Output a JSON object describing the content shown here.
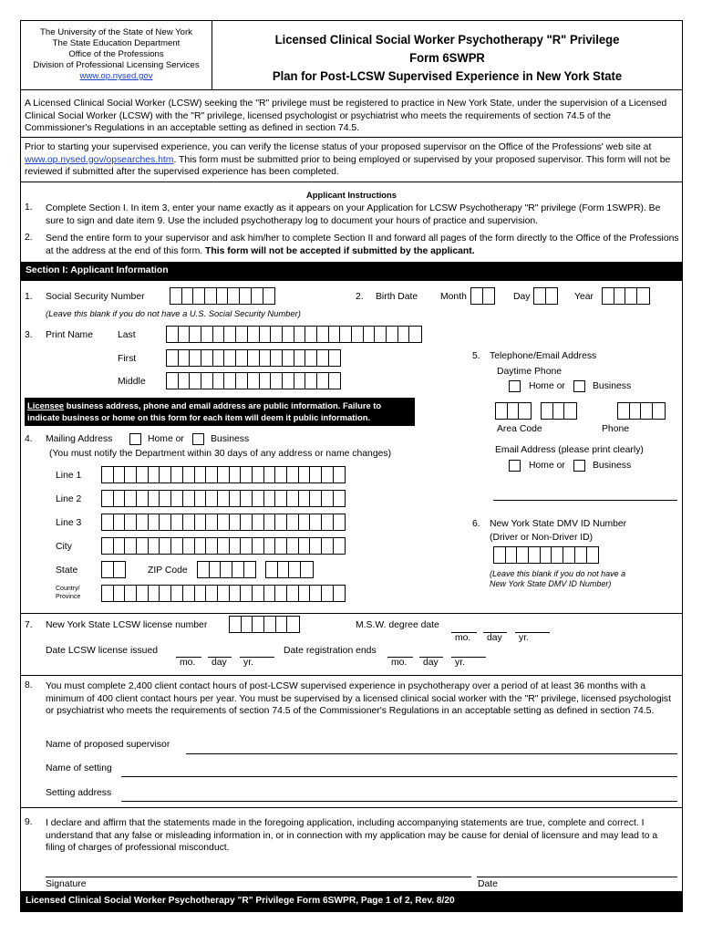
{
  "header": {
    "agency": [
      "The University of the State of New York",
      "The State Education Department",
      "Office of the Professions",
      "Division of Professional Licensing Services"
    ],
    "agency_url": "www.op.nysed.gov",
    "title": [
      "Licensed Clinical Social Worker Psychotherapy \"R\" Privilege",
      "Form 6SWPR",
      "Plan for Post-LCSW Supervised Experience in New York State"
    ]
  },
  "intro": {
    "p1": "A Licensed Clinical Social Worker (LCSW) seeking the \"R\" privilege must be registered to practice in New York State, under the supervision of a Licensed Clinical Social Worker (LCSW) with the \"R\" privilege, licensed psychologist or psychiatrist who meets the requirements of section 74.5 of the Commissioner's Regulations in an acceptable setting as defined in section 74.5.",
    "p2_a": "Prior to starting your supervised experience, you can verify the license status of your proposed supervisor on the Office of the Professions' web site at ",
    "p2_link": "www.op.nysed.gov/opsearches.htm",
    "p2_b": ". This form must be submitted prior to being employed or supervised by your proposed supervisor. This form will not be reviewed if submitted after the supervised experience has been completed."
  },
  "instructions": {
    "heading": "Applicant Instructions",
    "items": [
      {
        "num": "1.",
        "text": "Complete Section I. In item 3, enter your name exactly as it appears on your Application for LCSW Psychotherapy \"R\" privilege (Form 1SWPR). Be sure to sign and date item 9. Use the included psychotherapy log to document your hours of practice and supervision."
      },
      {
        "num": "2.",
        "text": "Send the entire form to your supervisor and ask him/her to complete Section II and forward all pages of the form directly to the Office of the Professions at the address at the end of this form. ",
        "bold": "This form will not be accepted if submitted by the applicant."
      }
    ]
  },
  "section1": {
    "title": "Section I: Applicant Information",
    "ssn": {
      "num": "1.",
      "label": "Social Security Number",
      "note": "(Leave this blank if you do not have a U.S. Social Security Number)"
    },
    "birth": {
      "num": "2.",
      "label": "Birth Date",
      "month": "Month",
      "day": "Day",
      "year": "Year"
    },
    "name": {
      "num": "3.",
      "label": "Print Name",
      "last": "Last",
      "first": "First",
      "middle": "Middle"
    },
    "notice": {
      "underlined": "Licensee",
      "text": " business address, phone and email address are public information. Failure to indicate business or home on this form for each item will deem it public information."
    },
    "mailing": {
      "num": "4.",
      "label": "Mailing Address",
      "home": "Home or",
      "business": "Business",
      "note": "(You must notify the Department within 30 days of any address or name changes)",
      "line1": "Line 1",
      "line2": "Line 2",
      "line3": "Line 3",
      "city": "City",
      "state": "State",
      "zip": "ZIP Code",
      "country": "Country/",
      "province": "Province"
    },
    "phone": {
      "num": "5.",
      "label": "Telephone/Email Address",
      "daytime": "Daytime Phone",
      "home": "Home or",
      "business": "Business",
      "area_code": "Area Code",
      "phone": "Phone",
      "email": "Email Address (please print clearly)"
    },
    "dmv": {
      "num": "6.",
      "label": "New York State DMV ID Number",
      "sub": "(Driver or Non-Driver ID)",
      "note1": "(Leave this blank if you do not have a",
      "note2": "New York State DMV ID Number)"
    },
    "license": {
      "num": "7.",
      "label": "New York State LCSW license number",
      "msw": "M.S.W. degree date",
      "issued": "Date LCSW license issued",
      "reg_ends": "Date registration ends",
      "mo": "mo.",
      "day": "day",
      "yr": "yr."
    },
    "experience": {
      "num": "8.",
      "text": "You must complete 2,400 client contact hours of post-LCSW supervised experience in psychotherapy over a period of at least 36 months with a minimum of 400 client contact hours per year. You must be supervised by a licensed clinical social worker with the \"R\" privilege, licensed psychologist or psychiatrist who meets the requirements of section 74.5 of the Commissioner's Regulations in an acceptable setting as defined in section 74.5.",
      "supervisor": "Name of proposed supervisor",
      "setting": "Name of setting",
      "address": "Setting address"
    },
    "declaration": {
      "num": "9.",
      "text": "I declare and affirm that the statements made in the foregoing application, including accompanying statements are true, complete and correct. I understand that any false or misleading information in, or in connection with my application may be cause for denial of licensure and may lead to a filing of charges of professional misconduct.",
      "signature": "Signature",
      "date": "Date"
    }
  },
  "footer": "Licensed Clinical Social Worker Psychotherapy \"R\" Privilege Form 6SWPR, Page 1 of 2, Rev. 8/20",
  "colors": {
    "link": "#1a3fcc",
    "bar": "#000000"
  }
}
